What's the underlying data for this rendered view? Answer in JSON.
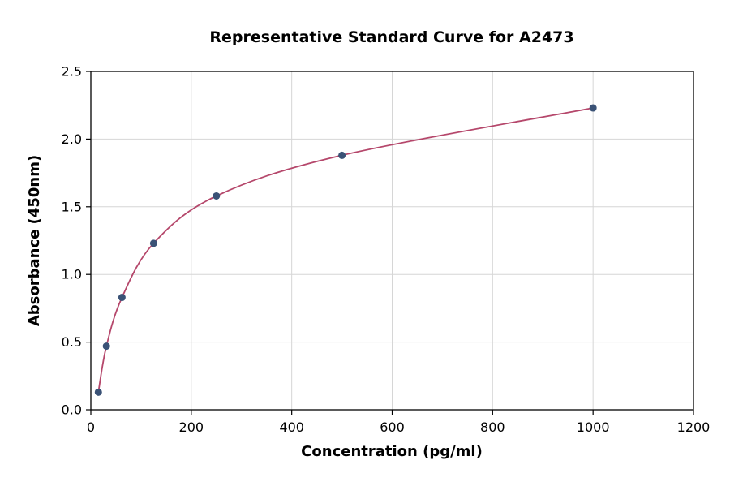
{
  "chart_data": {
    "type": "scatter",
    "title": "Representative Standard Curve for A2473",
    "xlabel": "Concentration (pg/ml)",
    "ylabel": "Absorbance (450nm)",
    "xlim": [
      0,
      1200
    ],
    "ylim": [
      0,
      2.5
    ],
    "x_ticks": [
      0,
      200,
      400,
      600,
      800,
      1000,
      1200
    ],
    "y_ticks": [
      0.0,
      0.5,
      1.0,
      1.5,
      2.0,
      2.5
    ],
    "grid": true,
    "points": [
      {
        "x": 15,
        "y": 0.13
      },
      {
        "x": 31,
        "y": 0.47
      },
      {
        "x": 62,
        "y": 0.83
      },
      {
        "x": 125,
        "y": 1.23
      },
      {
        "x": 250,
        "y": 1.58
      },
      {
        "x": 500,
        "y": 1.88
      },
      {
        "x": 1000,
        "y": 2.23
      }
    ],
    "curve_color": "#b5476b",
    "point_color": "#3a5276",
    "grid_color": "#d6d6d6",
    "axis_color": "#000000",
    "background_color": "#ffffff"
  }
}
